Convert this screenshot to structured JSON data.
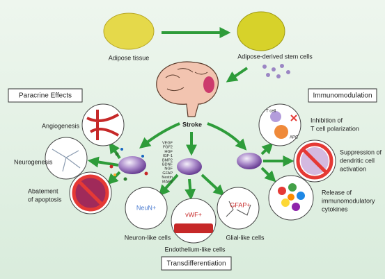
{
  "top": {
    "source": "Adipose tissue",
    "derived": "Adipose-derived stem cells",
    "event": "Stroke"
  },
  "sections": {
    "paracrine": "Paracrine Effects",
    "immuno": "Immunomodulation",
    "trans": "Transdifferentiation"
  },
  "paracrine": {
    "angiogenesis": "Angiogenesis",
    "neurogenesis": "Neurogenesis",
    "apoptosis": [
      "Abatement",
      "of apoptosis"
    ],
    "factors": [
      "VEGF",
      "FGF2",
      "HGF",
      "IGF-1",
      "BMP2",
      "BDNF",
      "NGF",
      "GFAP",
      "Nestin",
      "MAP2"
    ]
  },
  "trans": {
    "neuron": "Neuron-like cells",
    "neuron_marker": "NeuN+",
    "endo": "Endothelium-like cells",
    "endo_marker": "vWF+",
    "glial": "Glial-like cells",
    "glial_marker": "GFAP+"
  },
  "immuno": {
    "tcell": "T cell",
    "apc": "APC",
    "inhibition": [
      "Inhibition of",
      "T cell polarization"
    ],
    "suppression": [
      "Suppression of",
      "dendritic cell",
      "activation"
    ],
    "release": [
      "Release of",
      "immunomodulatory",
      "cytokines"
    ]
  }
}
